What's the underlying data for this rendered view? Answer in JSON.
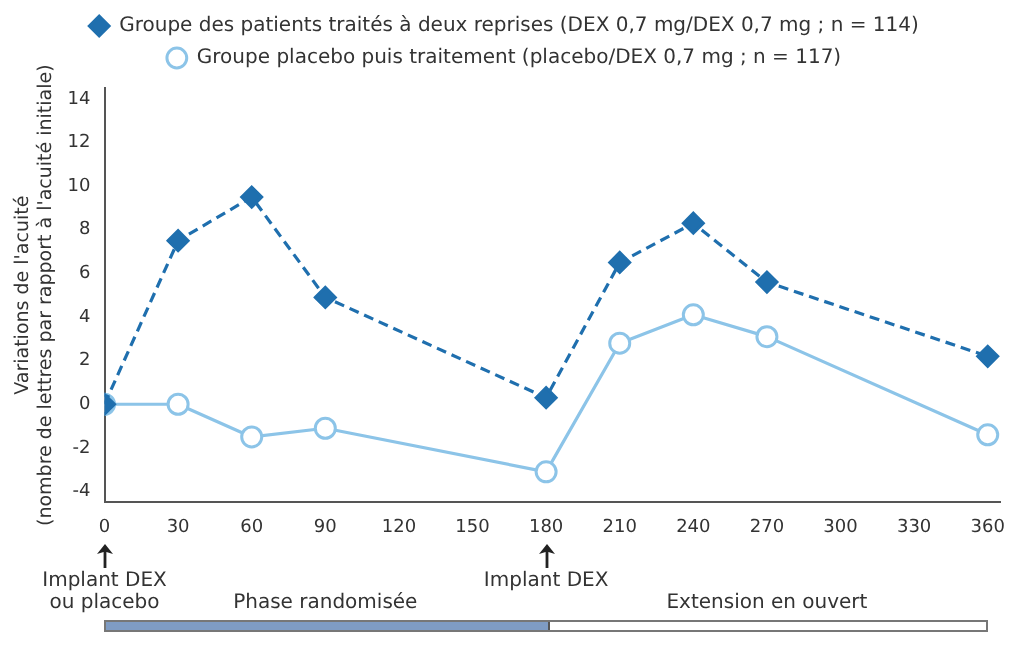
{
  "chart_data": {
    "type": "line",
    "xlabel": null,
    "ylabel": [
      "Variations de l'acuité",
      "(nombre de lettres par rapport à l'acuité initiale)"
    ],
    "x": [
      0,
      30,
      60,
      90,
      180,
      210,
      240,
      270,
      360
    ],
    "series": [
      {
        "name": "Groupe des patients traités à deux reprises (DEX 0,7 mg/DEX 0,7 mg ; n = 114)",
        "color": "#1f6fae",
        "marker": "diamond",
        "line_style": "dashed",
        "values": [
          0,
          7.5,
          9.5,
          4.9,
          0.3,
          6.5,
          8.3,
          5.6,
          2.2
        ]
      },
      {
        "name": "Groupe placebo puis traitement (placebo/DEX 0,7 mg ; n = 117)",
        "color": "#8cc4e8",
        "marker": "circle",
        "line_style": "solid",
        "values": [
          0,
          0,
          -1.5,
          -1.1,
          -3.1,
          2.8,
          4.1,
          3.1,
          -1.4
        ]
      }
    ],
    "xlim": [
      0,
      365
    ],
    "xticks": [
      0,
      30,
      60,
      90,
      120,
      150,
      180,
      210,
      240,
      270,
      300,
      330,
      360
    ],
    "ylim": [
      -4.5,
      14.5
    ],
    "yticks": [
      -4,
      -2,
      0,
      2,
      4,
      6,
      8,
      10,
      12,
      14
    ],
    "grid": false,
    "legend": "top",
    "annotations": [
      "Implant DEX ou placebo",
      "Implant DEX",
      "Phase randomisée",
      "Extension en ouvert"
    ]
  }
}
